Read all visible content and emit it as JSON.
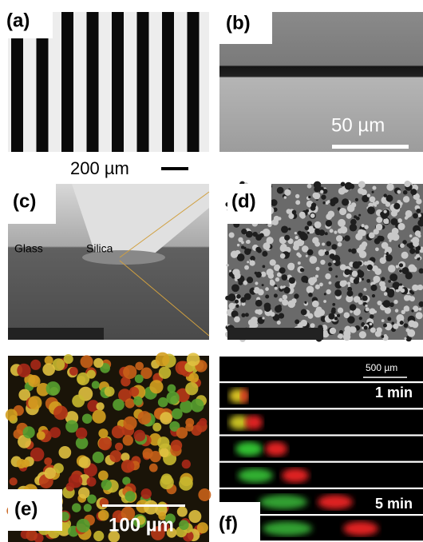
{
  "panels": [
    {
      "label": "(a)",
      "scale_bar": "200 µm"
    },
    {
      "label": "(b)",
      "scale_bar": "50 µm"
    },
    {
      "label": "(c)",
      "annotations": [
        "Glass",
        "Silica"
      ]
    },
    {
      "label": "(d)"
    },
    {
      "label": "(e)",
      "scale_bar": "100 µm"
    },
    {
      "label": "(f)",
      "scale_bar": "500 µm",
      "annotations": [
        "1 min",
        "5 min"
      ]
    }
  ]
}
